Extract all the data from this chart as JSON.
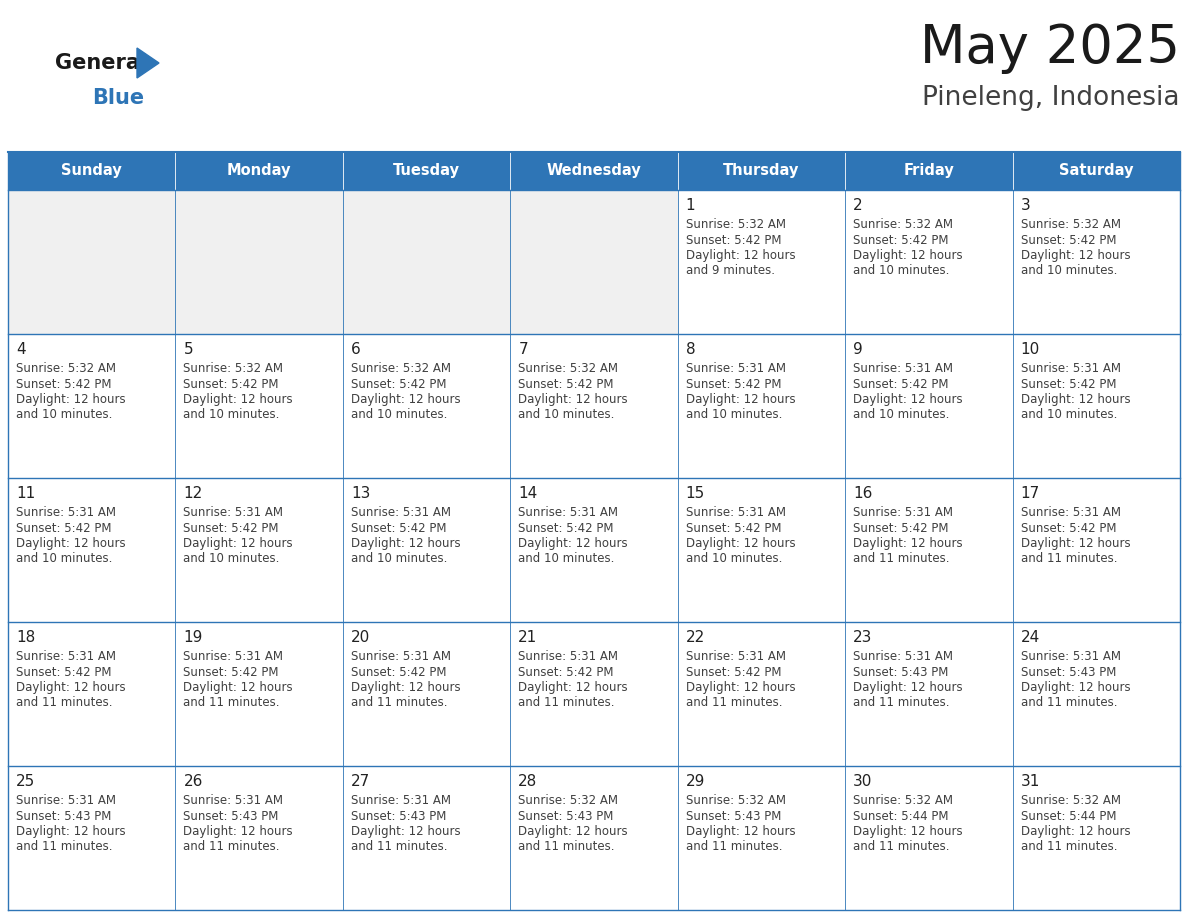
{
  "title": "May 2025",
  "subtitle": "Pineleng, Indonesia",
  "days_of_week": [
    "Sunday",
    "Monday",
    "Tuesday",
    "Wednesday",
    "Thursday",
    "Friday",
    "Saturday"
  ],
  "header_bg": "#2E75B6",
  "header_text": "#FFFFFF",
  "cell_bg_white": "#FFFFFF",
  "cell_bg_gray": "#F0F0F0",
  "border_color": "#2E75B6",
  "day_number_color": "#222222",
  "cell_text_color": "#404040",
  "title_color": "#1a1a1a",
  "subtitle_color": "#404040",
  "logo_general_color": "#1a1a1a",
  "logo_blue_color": "#2E75B6",
  "weeks": [
    [
      null,
      null,
      null,
      null,
      {
        "day": 1,
        "sunrise": "5:32 AM",
        "sunset": "5:42 PM",
        "daylight": "12 hours and 9 minutes"
      },
      {
        "day": 2,
        "sunrise": "5:32 AM",
        "sunset": "5:42 PM",
        "daylight": "12 hours and 10 minutes"
      },
      {
        "day": 3,
        "sunrise": "5:32 AM",
        "sunset": "5:42 PM",
        "daylight": "12 hours and 10 minutes"
      }
    ],
    [
      {
        "day": 4,
        "sunrise": "5:32 AM",
        "sunset": "5:42 PM",
        "daylight": "12 hours and 10 minutes"
      },
      {
        "day": 5,
        "sunrise": "5:32 AM",
        "sunset": "5:42 PM",
        "daylight": "12 hours and 10 minutes"
      },
      {
        "day": 6,
        "sunrise": "5:32 AM",
        "sunset": "5:42 PM",
        "daylight": "12 hours and 10 minutes"
      },
      {
        "day": 7,
        "sunrise": "5:32 AM",
        "sunset": "5:42 PM",
        "daylight": "12 hours and 10 minutes"
      },
      {
        "day": 8,
        "sunrise": "5:31 AM",
        "sunset": "5:42 PM",
        "daylight": "12 hours and 10 minutes"
      },
      {
        "day": 9,
        "sunrise": "5:31 AM",
        "sunset": "5:42 PM",
        "daylight": "12 hours and 10 minutes"
      },
      {
        "day": 10,
        "sunrise": "5:31 AM",
        "sunset": "5:42 PM",
        "daylight": "12 hours and 10 minutes"
      }
    ],
    [
      {
        "day": 11,
        "sunrise": "5:31 AM",
        "sunset": "5:42 PM",
        "daylight": "12 hours and 10 minutes"
      },
      {
        "day": 12,
        "sunrise": "5:31 AM",
        "sunset": "5:42 PM",
        "daylight": "12 hours and 10 minutes"
      },
      {
        "day": 13,
        "sunrise": "5:31 AM",
        "sunset": "5:42 PM",
        "daylight": "12 hours and 10 minutes"
      },
      {
        "day": 14,
        "sunrise": "5:31 AM",
        "sunset": "5:42 PM",
        "daylight": "12 hours and 10 minutes"
      },
      {
        "day": 15,
        "sunrise": "5:31 AM",
        "sunset": "5:42 PM",
        "daylight": "12 hours and 10 minutes"
      },
      {
        "day": 16,
        "sunrise": "5:31 AM",
        "sunset": "5:42 PM",
        "daylight": "12 hours and 11 minutes"
      },
      {
        "day": 17,
        "sunrise": "5:31 AM",
        "sunset": "5:42 PM",
        "daylight": "12 hours and 11 minutes"
      }
    ],
    [
      {
        "day": 18,
        "sunrise": "5:31 AM",
        "sunset": "5:42 PM",
        "daylight": "12 hours and 11 minutes"
      },
      {
        "day": 19,
        "sunrise": "5:31 AM",
        "sunset": "5:42 PM",
        "daylight": "12 hours and 11 minutes"
      },
      {
        "day": 20,
        "sunrise": "5:31 AM",
        "sunset": "5:42 PM",
        "daylight": "12 hours and 11 minutes"
      },
      {
        "day": 21,
        "sunrise": "5:31 AM",
        "sunset": "5:42 PM",
        "daylight": "12 hours and 11 minutes"
      },
      {
        "day": 22,
        "sunrise": "5:31 AM",
        "sunset": "5:42 PM",
        "daylight": "12 hours and 11 minutes"
      },
      {
        "day": 23,
        "sunrise": "5:31 AM",
        "sunset": "5:43 PM",
        "daylight": "12 hours and 11 minutes"
      },
      {
        "day": 24,
        "sunrise": "5:31 AM",
        "sunset": "5:43 PM",
        "daylight": "12 hours and 11 minutes"
      }
    ],
    [
      {
        "day": 25,
        "sunrise": "5:31 AM",
        "sunset": "5:43 PM",
        "daylight": "12 hours and 11 minutes"
      },
      {
        "day": 26,
        "sunrise": "5:31 AM",
        "sunset": "5:43 PM",
        "daylight": "12 hours and 11 minutes"
      },
      {
        "day": 27,
        "sunrise": "5:31 AM",
        "sunset": "5:43 PM",
        "daylight": "12 hours and 11 minutes"
      },
      {
        "day": 28,
        "sunrise": "5:32 AM",
        "sunset": "5:43 PM",
        "daylight": "12 hours and 11 minutes"
      },
      {
        "day": 29,
        "sunrise": "5:32 AM",
        "sunset": "5:43 PM",
        "daylight": "12 hours and 11 minutes"
      },
      {
        "day": 30,
        "sunrise": "5:32 AM",
        "sunset": "5:44 PM",
        "daylight": "12 hours and 11 minutes"
      },
      {
        "day": 31,
        "sunrise": "5:32 AM",
        "sunset": "5:44 PM",
        "daylight": "12 hours and 11 minutes"
      }
    ]
  ]
}
